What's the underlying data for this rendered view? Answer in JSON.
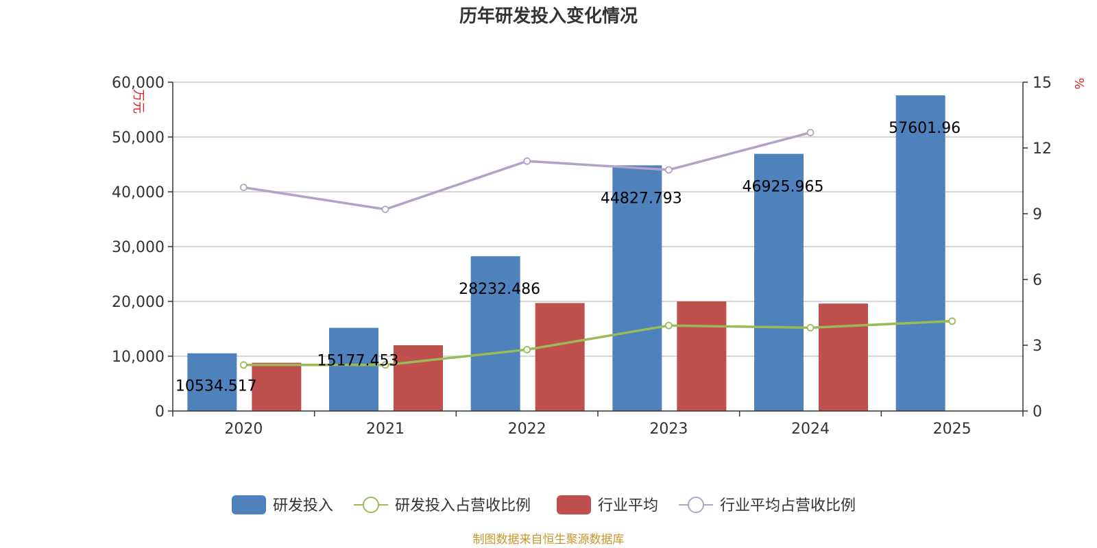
{
  "chart_data": {
    "type": "bar",
    "title": "历年研发投入变化情况",
    "categories": [
      "2020",
      "2021",
      "2022",
      "2023",
      "2024",
      "2025"
    ],
    "y_left": {
      "label": "万元",
      "range": [
        0,
        60000
      ],
      "ticks": [
        "0",
        "10,000",
        "20,000",
        "30,000",
        "40,000",
        "50,000",
        "60,000"
      ]
    },
    "y_right": {
      "label": "%",
      "range": [
        0,
        15
      ],
      "ticks": [
        "0",
        "3",
        "6",
        "9",
        "12",
        "15"
      ]
    },
    "series": [
      {
        "name": "研发投入",
        "type": "bar",
        "axis": "left",
        "color": "#4f81bd",
        "values": [
          10534.517,
          15177.453,
          28232.486,
          44827.793,
          46925.965,
          57601.96
        ],
        "labels": [
          "10534.517",
          "15177.453",
          "28232.486",
          "44827.793",
          "46925.965",
          "57601.96"
        ]
      },
      {
        "name": "研发投入占营收比例",
        "type": "line",
        "axis": "right",
        "color": "#9bbb59",
        "values": [
          2.1,
          2.1,
          2.8,
          3.9,
          3.8,
          4.1
        ]
      },
      {
        "name": "行业平均",
        "type": "bar",
        "axis": "left",
        "color": "#c0504d",
        "values": [
          8800,
          12000,
          19700,
          20000,
          19600,
          null
        ]
      },
      {
        "name": "行业平均占营收比例",
        "type": "line",
        "axis": "right",
        "color": "#b3a2c7",
        "values": [
          10.2,
          9.2,
          11.4,
          11.0,
          12.7,
          null
        ]
      }
    ],
    "grid": true,
    "legend_position": "bottom"
  },
  "source": "制图数据来自恒生聚源数据库"
}
